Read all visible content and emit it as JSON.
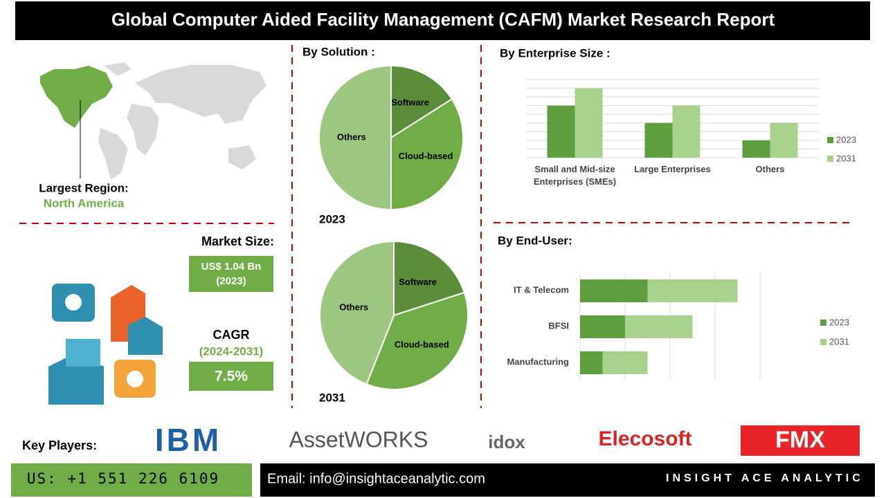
{
  "header": {
    "title": "Global Computer Aided Facility Management (CAFM) Market Research Report"
  },
  "region": {
    "label": "Largest Region:",
    "value": "North America"
  },
  "market": {
    "size_label": "Market Size:",
    "size_value": "US$ 1.04 Bn",
    "size_year": "(2023)",
    "cagr_label": "CAGR",
    "cagr_period": "(2024-2031)",
    "cagr_value": "7.5%"
  },
  "chart_data": [
    {
      "type": "pie",
      "title": "By Solution :",
      "year": "2023",
      "categories": [
        "Software",
        "Cloud-based",
        "Others"
      ],
      "values": [
        16,
        34,
        50
      ],
      "colors": [
        "#5b8d3a",
        "#70ad47",
        "#9dc681"
      ]
    },
    {
      "type": "pie",
      "year": "2031",
      "categories": [
        "Software",
        "Cloud-based",
        "Others"
      ],
      "values": [
        20,
        36,
        44
      ],
      "colors": [
        "#5b8d3a",
        "#70ad47",
        "#9dc681"
      ]
    },
    {
      "type": "bar",
      "title": "By Enterprise Size :",
      "categories": [
        "Small and Mid-size Enterprises (SMEs)",
        "Large Enterprises",
        "Others"
      ],
      "series": [
        {
          "name": "2023",
          "color": "#5f9e3f",
          "values": [
            6,
            4,
            2
          ]
        },
        {
          "name": "2031",
          "color": "#a9d18e",
          "values": [
            8,
            6,
            4
          ]
        }
      ],
      "ylim": [
        0,
        9
      ],
      "yticks": [
        0,
        1,
        2,
        3,
        4,
        5,
        6,
        7,
        8,
        9
      ],
      "grid": true
    },
    {
      "type": "hbar_stacked",
      "title": "By End-User:",
      "categories": [
        "IT & Telecom",
        "BFSI",
        "Manufacturing"
      ],
      "series": [
        {
          "name": "2023",
          "color": "#5f9e3f",
          "values": [
            1.5,
            1,
            0.5
          ]
        },
        {
          "name": "2031",
          "color": "#a9d18e",
          "values": [
            2,
            1.5,
            1
          ]
        }
      ],
      "xlim": [
        0,
        4
      ],
      "xticks": [
        0,
        1,
        2,
        3,
        4
      ],
      "grid": true
    }
  ],
  "footer": {
    "key_players_label": "Key Players:",
    "players": [
      "IBM",
      "AssetWORKS",
      "idox",
      "Elecosoft",
      "FMX"
    ],
    "phone": "US: +1 551 226 6109",
    "email": "Email: info@insightaceanalytic.com",
    "brand": "INSIGHT ACE ANALYTIC"
  }
}
